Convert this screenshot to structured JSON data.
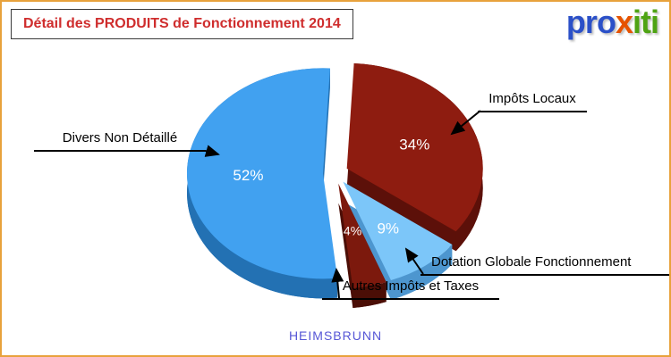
{
  "header": {
    "title": "Détail des PRODUITS de Fonctionnement 2014",
    "title_color": "#cf2d2d"
  },
  "logo": {
    "word": "proxiti",
    "letters": [
      {
        "ch": "p",
        "color": "#2b50c8"
      },
      {
        "ch": "r",
        "color": "#2b50c8"
      },
      {
        "ch": "o",
        "color": "#2b50c8"
      },
      {
        "ch": "x",
        "color": "#e65300"
      },
      {
        "ch": "i",
        "color": "#4ea313"
      },
      {
        "ch": "t",
        "color": "#4ea313"
      },
      {
        "ch": "i",
        "color": "#4ea313"
      }
    ]
  },
  "footer": {
    "municipality": "HEIMSBRUNN",
    "color": "#5656d6"
  },
  "colors": {
    "frame_border": "#e8a23c",
    "callout_line": "#000000",
    "percent_label": "#ffffff"
  },
  "chart_data": {
    "type": "pie",
    "title": "Détail des PRODUITS de Fonctionnement 2014",
    "effect": "3d-exploded",
    "unit": "%",
    "start_angle_deg": 3,
    "legend_position": "callout-labels",
    "slices": [
      {
        "label": "Impôts Locaux",
        "value": 34,
        "display": "34%",
        "color": "#8e1c10",
        "side_color": "#5c1009"
      },
      {
        "label": "Dotation Globale Fonctionnement",
        "value": 9,
        "display": "9%",
        "color": "#7cc6f9",
        "side_color": "#4d96cf"
      },
      {
        "label": "Autres Impôts et Taxes",
        "value": 4,
        "display": "4%",
        "color": "#7c190d",
        "side_color": "#4b0e06"
      },
      {
        "label": "Divers Non Détaillé",
        "value": 52,
        "display": "52%",
        "color": "#41a1f0",
        "side_color": "#2371b3"
      }
    ]
  }
}
